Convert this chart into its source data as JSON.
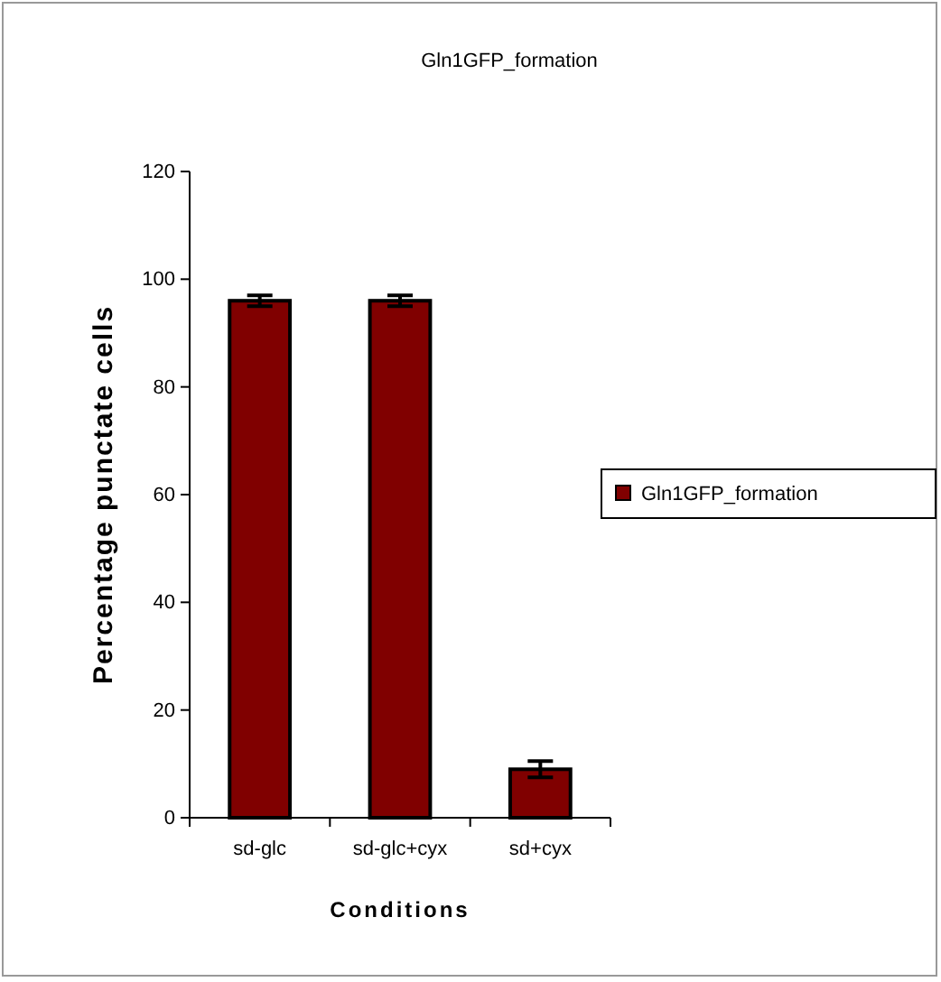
{
  "chart_data": {
    "type": "bar",
    "title": "Gln1GFP_formation",
    "xlabel": "Conditions",
    "ylabel": "Percentage punctate cells",
    "categories": [
      "sd-glc",
      "sd-glc+cyx",
      "sd+cyx"
    ],
    "series": [
      {
        "name": "Gln1GFP_formation",
        "color": "#800000",
        "values": [
          96,
          96,
          9
        ],
        "errors": [
          1,
          1,
          1.5
        ]
      }
    ],
    "ylim": [
      0,
      120
    ],
    "yticks": [
      0,
      20,
      40,
      60,
      80,
      100,
      120
    ],
    "grid": false,
    "legend": "right"
  }
}
